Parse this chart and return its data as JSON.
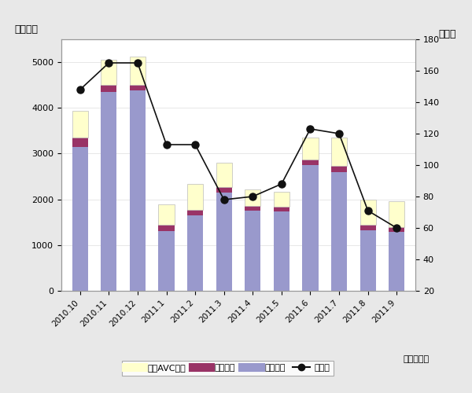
{
  "categories": [
    "2010.10",
    "2010.11",
    "2010.12",
    "2011.1",
    "2011.2",
    "2011.3",
    "2011.4",
    "2011.5",
    "2011.6",
    "2011.7",
    "2011.8",
    "2011.9"
  ],
  "video": [
    3150,
    4350,
    4380,
    1310,
    1650,
    2150,
    1750,
    1730,
    2750,
    2600,
    1330,
    1290
  ],
  "audio": [
    200,
    150,
    120,
    130,
    120,
    120,
    100,
    110,
    120,
    130,
    110,
    100
  ],
  "car_avc": [
    580,
    560,
    620,
    450,
    570,
    540,
    370,
    320,
    490,
    620,
    560,
    570
  ],
  "yoy": [
    148,
    165,
    165,
    113,
    113,
    78,
    80,
    88,
    123,
    120,
    71,
    60
  ],
  "left_ylabel": "（億円）",
  "right_ylabel": "（％）",
  "xlabel": "（年・月）",
  "ylim_left": [
    0,
    5500
  ],
  "ylim_right": [
    20,
    180
  ],
  "yticks_left": [
    0,
    1000,
    2000,
    3000,
    4000,
    5000
  ],
  "yticks_right": [
    20,
    40,
    60,
    80,
    100,
    120,
    140,
    160,
    180
  ],
  "color_video": "#9999cc",
  "color_audio": "#993366",
  "color_car_avc": "#ffffcc",
  "color_line": "#111111",
  "legend_labels": [
    "カーAVC機器",
    "音声機器",
    "映像機器",
    "前年比"
  ],
  "bar_width": 0.55,
  "fig_bg": "#e8e8e8",
  "plot_bg": "#ffffff",
  "border_color": "#999999"
}
